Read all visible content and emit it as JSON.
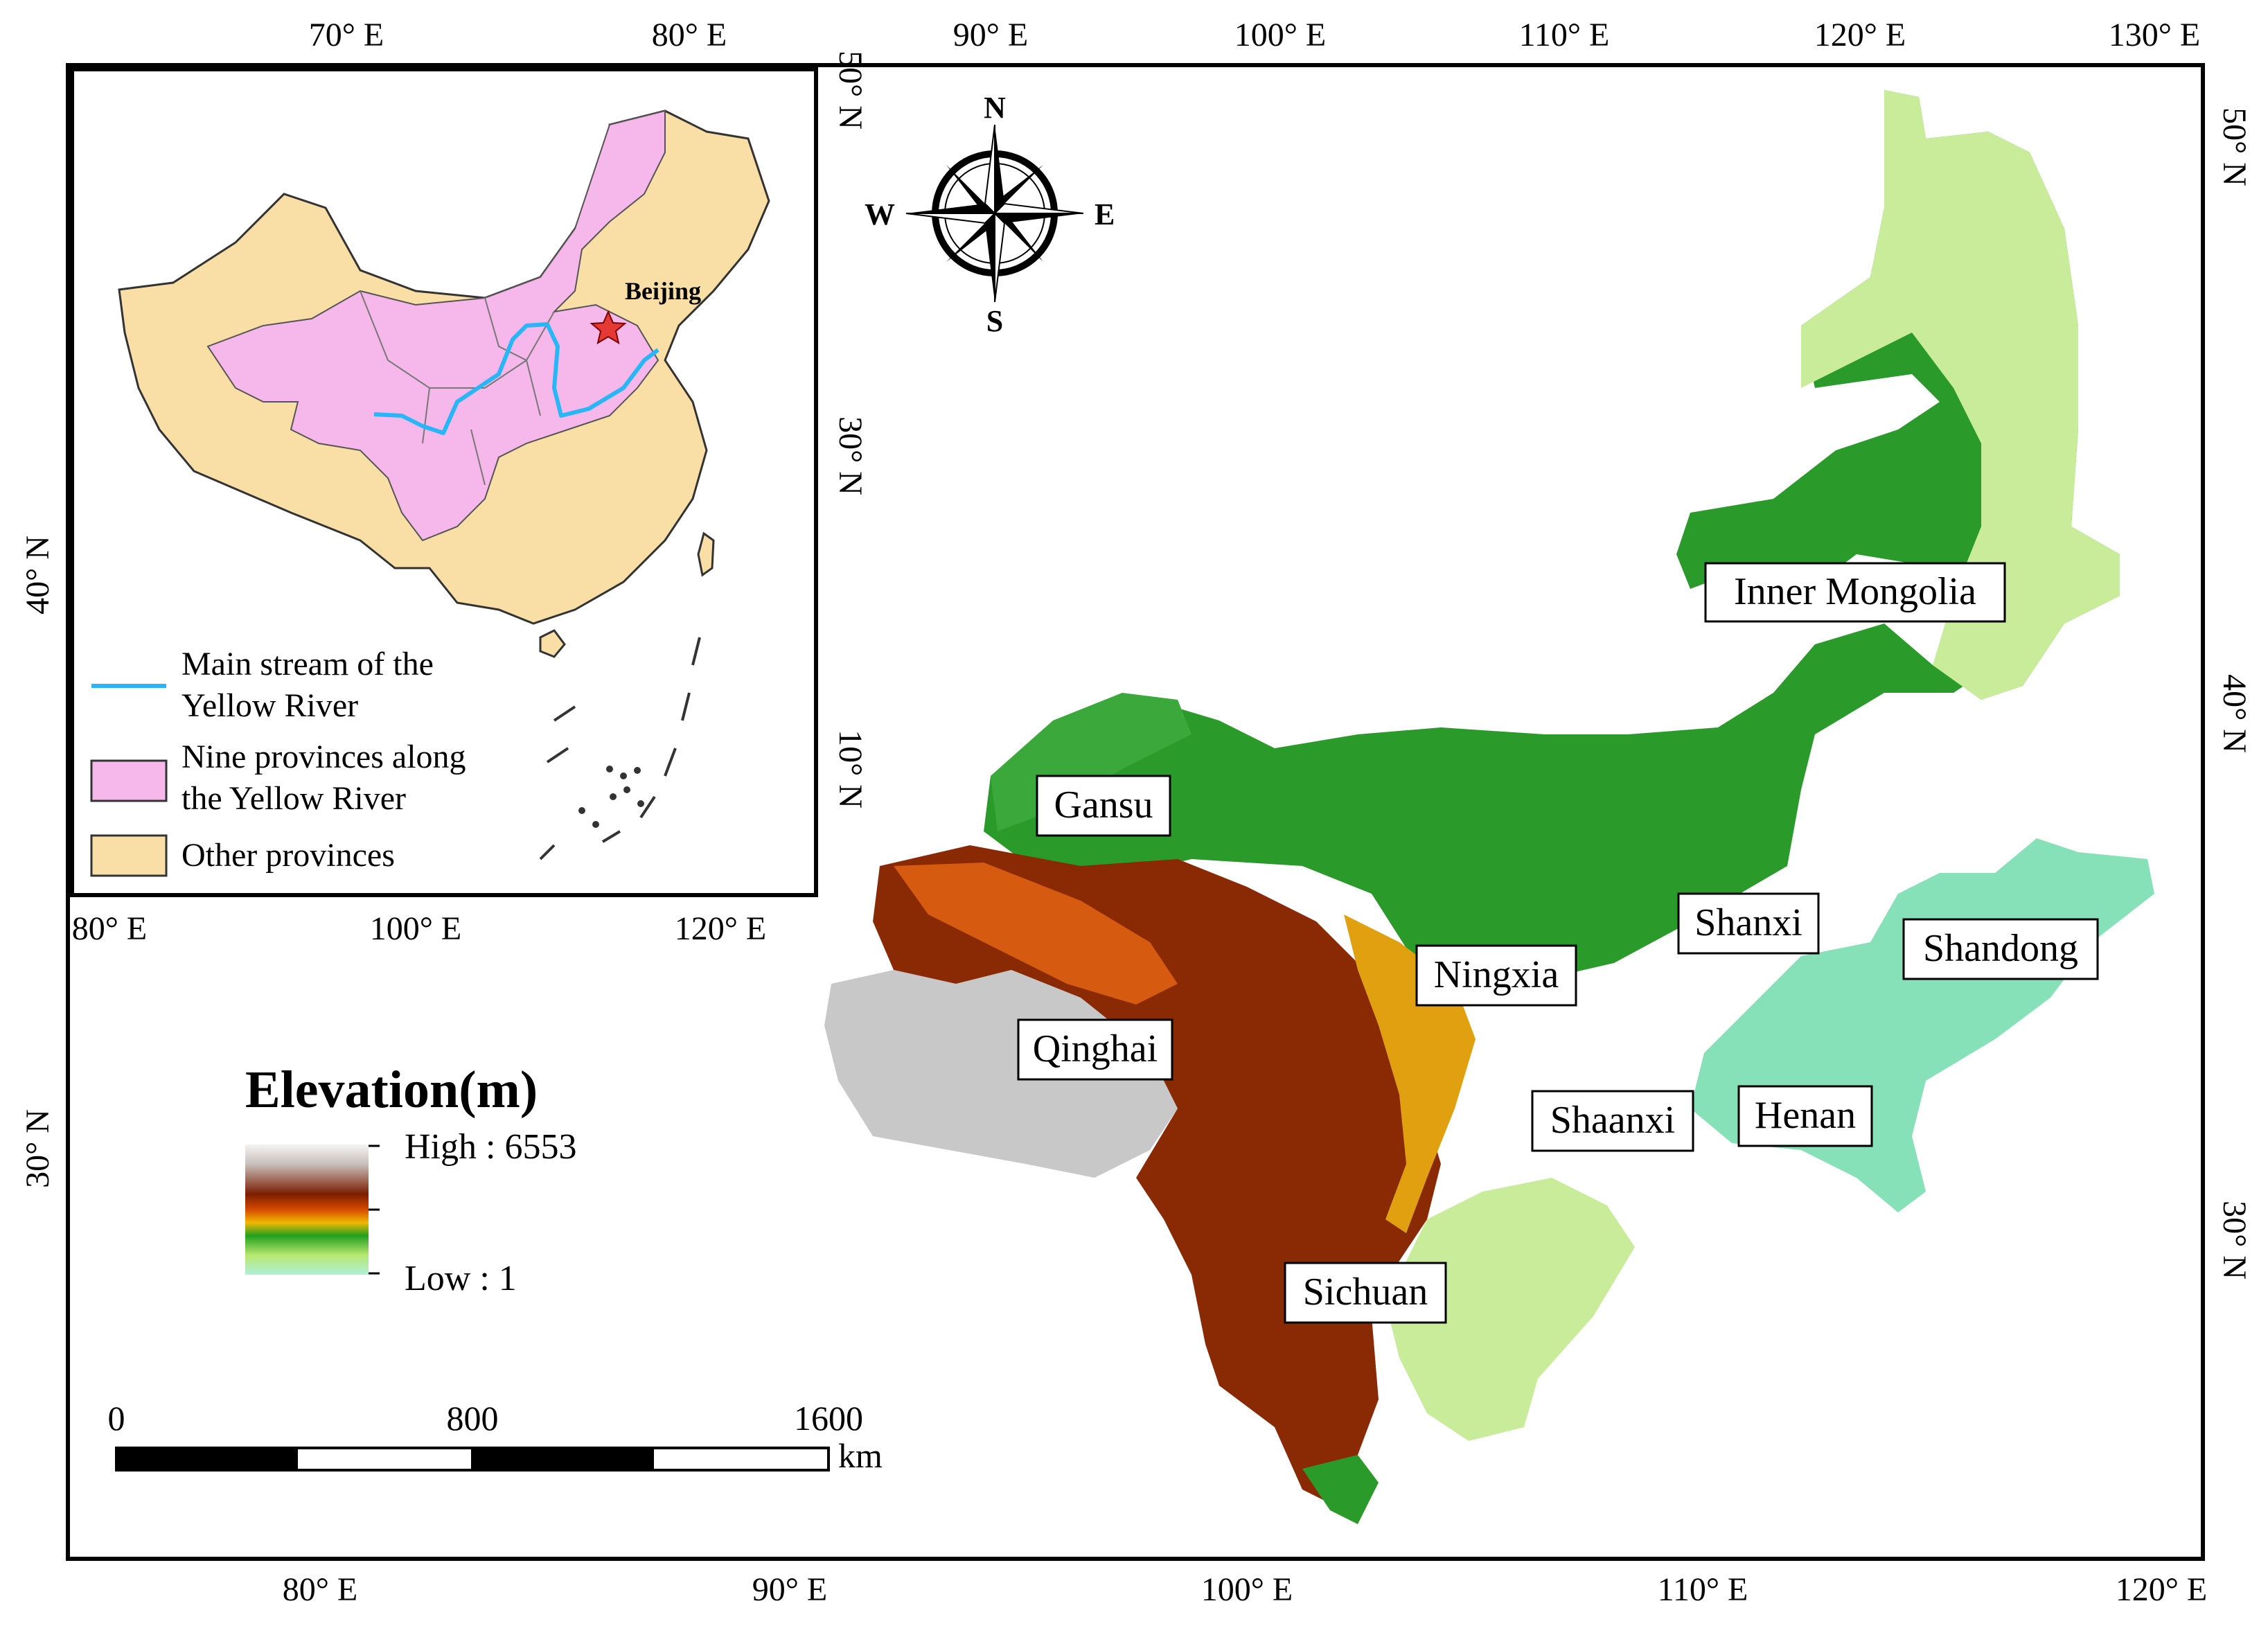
{
  "colors": {
    "yellow_river": "#29b6f6",
    "nine_provinces": "#f6b8ea",
    "other_provinces": "#f9dfa6",
    "elev_high": "#f0f0f0",
    "elev_mid": "#7a1e00",
    "elev_low": "#aef0cf"
  },
  "top_lon_labels": [
    "70° E",
    "80° E",
    "90° E",
    "100° E",
    "110° E",
    "120° E",
    "130° E"
  ],
  "bottom_lon_labels": [
    "80° E",
    "90° E",
    "100° E",
    "110° E",
    "120° E"
  ],
  "left_lat_labels": [
    "40° N",
    "30° N"
  ],
  "right_lat_labels": [
    "50° N",
    "40° N",
    "30° N"
  ],
  "inset": {
    "lat_labels": [
      "50° N",
      "30° N",
      "10° N"
    ],
    "lon_labels": [
      "80° E",
      "100° E",
      "120° E"
    ],
    "capital": "Beijing",
    "legend": [
      {
        "key": "river",
        "text": [
          "Main stream of the",
          "Yellow River"
        ]
      },
      {
        "key": "nine",
        "text": [
          "Nine provinces along",
          "the Yellow River"
        ]
      },
      {
        "key": "other",
        "text": [
          "Other provinces"
        ]
      }
    ]
  },
  "compass": {
    "n": "N",
    "s": "S",
    "e": "E",
    "w": "W"
  },
  "elevation_legend": {
    "title": "Elevation(m)",
    "high": "High : 6553",
    "low": "Low : 1"
  },
  "scale_bar": {
    "labels": [
      "0",
      "800",
      "1600"
    ],
    "unit": "km"
  },
  "provinces": [
    "Inner Mongolia",
    "Gansu",
    "Shanxi",
    "Shandong",
    "Ningxia",
    "Qinghai",
    "Shaanxi",
    "Henan",
    "Sichuan"
  ]
}
